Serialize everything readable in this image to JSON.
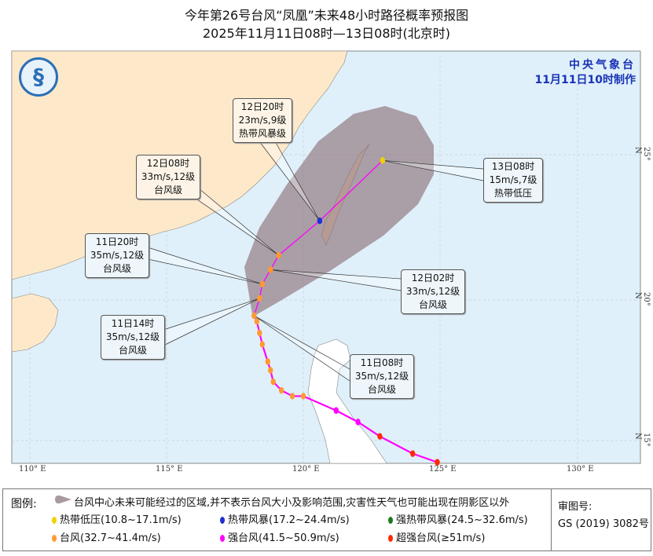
{
  "title": {
    "line1": "今年第26号台风“凤凰”未来48小时路径概率预报图",
    "line2": "2025年11月11日08时—13日08时(北京时)"
  },
  "agency": {
    "name": "中央气象台",
    "issued": "11月11日10时制作"
  },
  "axes": {
    "lon_labels": [
      "110° E",
      "115° E",
      "120° E",
      "125° E",
      "130° E"
    ],
    "lat_labels": [
      "25° N",
      "20° N",
      "15° N"
    ]
  },
  "colors": {
    "sea": "#dff0fa",
    "land_china": "#fde9c9",
    "land_other": "#ffffff",
    "cone": "#8e717b",
    "track": "#ff00ff",
    "typhoon": "#ff9933",
    "super_typhoon": "#ff2a00",
    "tropical_storm": "#1f2fd0",
    "tropical_depression": "#f2d000"
  },
  "past_track": [
    {
      "lon": 124.9,
      "lat": 14.3,
      "category": "super_typhoon"
    },
    {
      "lon": 124.0,
      "lat": 14.6,
      "category": "super_typhoon"
    },
    {
      "lon": 122.8,
      "lat": 15.2,
      "category": "super_typhoon"
    },
    {
      "lon": 122.0,
      "lat": 15.7,
      "category": "strong_typhoon"
    },
    {
      "lon": 121.2,
      "lat": 16.1,
      "category": "strong_typhoon"
    },
    {
      "lon": 120.0,
      "lat": 16.6,
      "category": "typhoon"
    },
    {
      "lon": 119.6,
      "lat": 16.6,
      "category": "typhoon"
    },
    {
      "lon": 119.2,
      "lat": 16.8,
      "category": "typhoon"
    },
    {
      "lon": 118.9,
      "lat": 17.1,
      "category": "typhoon"
    },
    {
      "lon": 118.8,
      "lat": 17.5,
      "category": "typhoon"
    },
    {
      "lon": 118.7,
      "lat": 17.8,
      "category": "typhoon"
    },
    {
      "lon": 118.5,
      "lat": 18.4,
      "category": "typhoon"
    },
    {
      "lon": 118.4,
      "lat": 18.8,
      "category": "typhoon"
    },
    {
      "lon": 118.3,
      "lat": 19.2,
      "category": "typhoon"
    },
    {
      "lon": 118.2,
      "lat": 19.4,
      "category": "typhoon"
    }
  ],
  "forecast": [
    {
      "time": "11日08时",
      "wind": "35m/s,12级",
      "level": "台风级",
      "lon": 118.2,
      "lat": 19.4,
      "category": "typhoon"
    },
    {
      "time": "11日14时",
      "wind": "35m/s,12级",
      "level": "台风级",
      "lon": 118.4,
      "lat": 20.0,
      "category": "typhoon"
    },
    {
      "time": "11日20时",
      "wind": "35m/s,12级",
      "level": "台风级",
      "lon": 118.5,
      "lat": 20.5,
      "category": "typhoon"
    },
    {
      "time": "12日02时",
      "wind": "33m/s,12级",
      "level": "台风级",
      "lon": 118.8,
      "lat": 21.0,
      "category": "typhoon"
    },
    {
      "time": "12日08时",
      "wind": "33m/s,12级",
      "level": "台风级",
      "lon": 119.1,
      "lat": 21.5,
      "category": "typhoon"
    },
    {
      "time": "12日20时",
      "wind": "23m/s,9级",
      "level": "热带风暴级",
      "lon": 120.6,
      "lat": 22.7,
      "category": "tropical_storm"
    },
    {
      "time": "13日08时",
      "wind": "15m/s,7级",
      "level": "热带低压",
      "lon": 122.9,
      "lat": 24.8,
      "category": "tropical_depression"
    }
  ],
  "legend": {
    "heading": "图例:",
    "cone_text": "台风中心未来可能经过的区域,并不表示台风大小及影响范围,灾害性天气也可能出现在阴影区以外",
    "items": [
      {
        "label": "热带低压(10.8~17.1m/s)",
        "color": "#f2d000"
      },
      {
        "label": "热带风暴(17.2~24.4m/s)",
        "color": "#1f2fd0"
      },
      {
        "label": "强热带风暴(24.5~32.6m/s)",
        "color": "#1e7a1e"
      },
      {
        "label": "台风(32.7~41.4m/s)",
        "color": "#ff9933"
      },
      {
        "label": "强台风(41.5~50.9m/s)",
        "color": "#ff00ff"
      },
      {
        "label": "超强台风(≥51m/s)",
        "color": "#ff2a00"
      }
    ],
    "approval_label": "审图号:",
    "approval_number": "GS (2019) 3082号"
  }
}
